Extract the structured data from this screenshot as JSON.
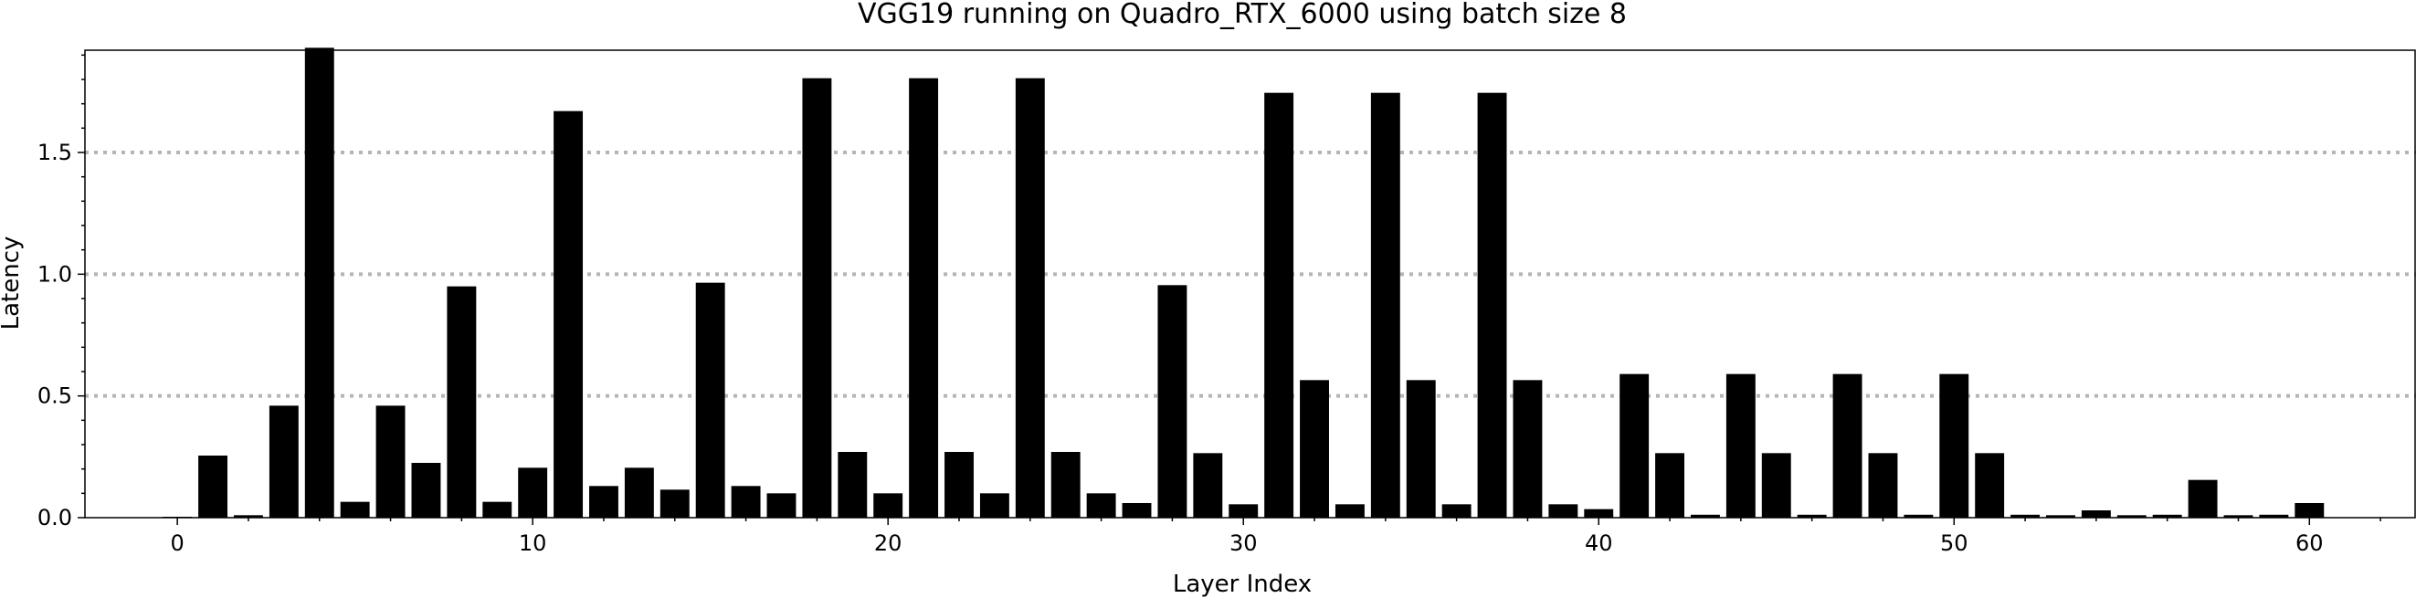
{
  "chart_data": {
    "type": "bar",
    "title": "VGG19 running on Quadro_RTX_6000 using batch size 8",
    "xlabel": "Layer Index",
    "ylabel": "Latency",
    "xlim": [
      -2.6,
      63
    ],
    "ylim": [
      0,
      1.92
    ],
    "x_ticks": [
      0,
      10,
      20,
      30,
      40,
      50,
      60
    ],
    "x_tick_labels": [
      "0",
      "10",
      "20",
      "30",
      "40",
      "50",
      "60"
    ],
    "y_ticks": [
      0,
      0.5,
      1.0,
      1.5
    ],
    "y_tick_labels": [
      "0.0",
      "0.5",
      "1.0",
      "1.5"
    ],
    "grid": "horizontal dotted at y ticks",
    "x": [
      0,
      1,
      2,
      3,
      4,
      5,
      6,
      7,
      8,
      9,
      10,
      11,
      12,
      13,
      14,
      15,
      16,
      17,
      18,
      19,
      20,
      21,
      22,
      23,
      24,
      25,
      26,
      27,
      28,
      29,
      30,
      31,
      32,
      33,
      34,
      35,
      36,
      37,
      38,
      39,
      40,
      41,
      42,
      43,
      44,
      45,
      46,
      47,
      48,
      49,
      50,
      51,
      52,
      53,
      54,
      55,
      56,
      57,
      58,
      59,
      60
    ],
    "values": [
      0.003,
      0.255,
      0.01,
      0.46,
      1.93,
      0.065,
      0.46,
      0.225,
      0.95,
      0.065,
      0.205,
      1.67,
      0.13,
      0.205,
      0.115,
      0.965,
      0.13,
      0.1,
      1.805,
      0.27,
      0.1,
      1.805,
      0.27,
      0.1,
      1.805,
      0.27,
      0.1,
      0.06,
      0.955,
      0.265,
      0.055,
      1.745,
      0.565,
      0.055,
      1.745,
      0.565,
      0.055,
      1.745,
      0.565,
      0.055,
      0.035,
      0.59,
      0.265,
      0.012,
      0.59,
      0.265,
      0.012,
      0.59,
      0.265,
      0.012,
      0.59,
      0.265,
      0.012,
      0.01,
      0.03,
      0.01,
      0.012,
      0.155,
      0.01,
      0.012,
      0.06
    ]
  }
}
